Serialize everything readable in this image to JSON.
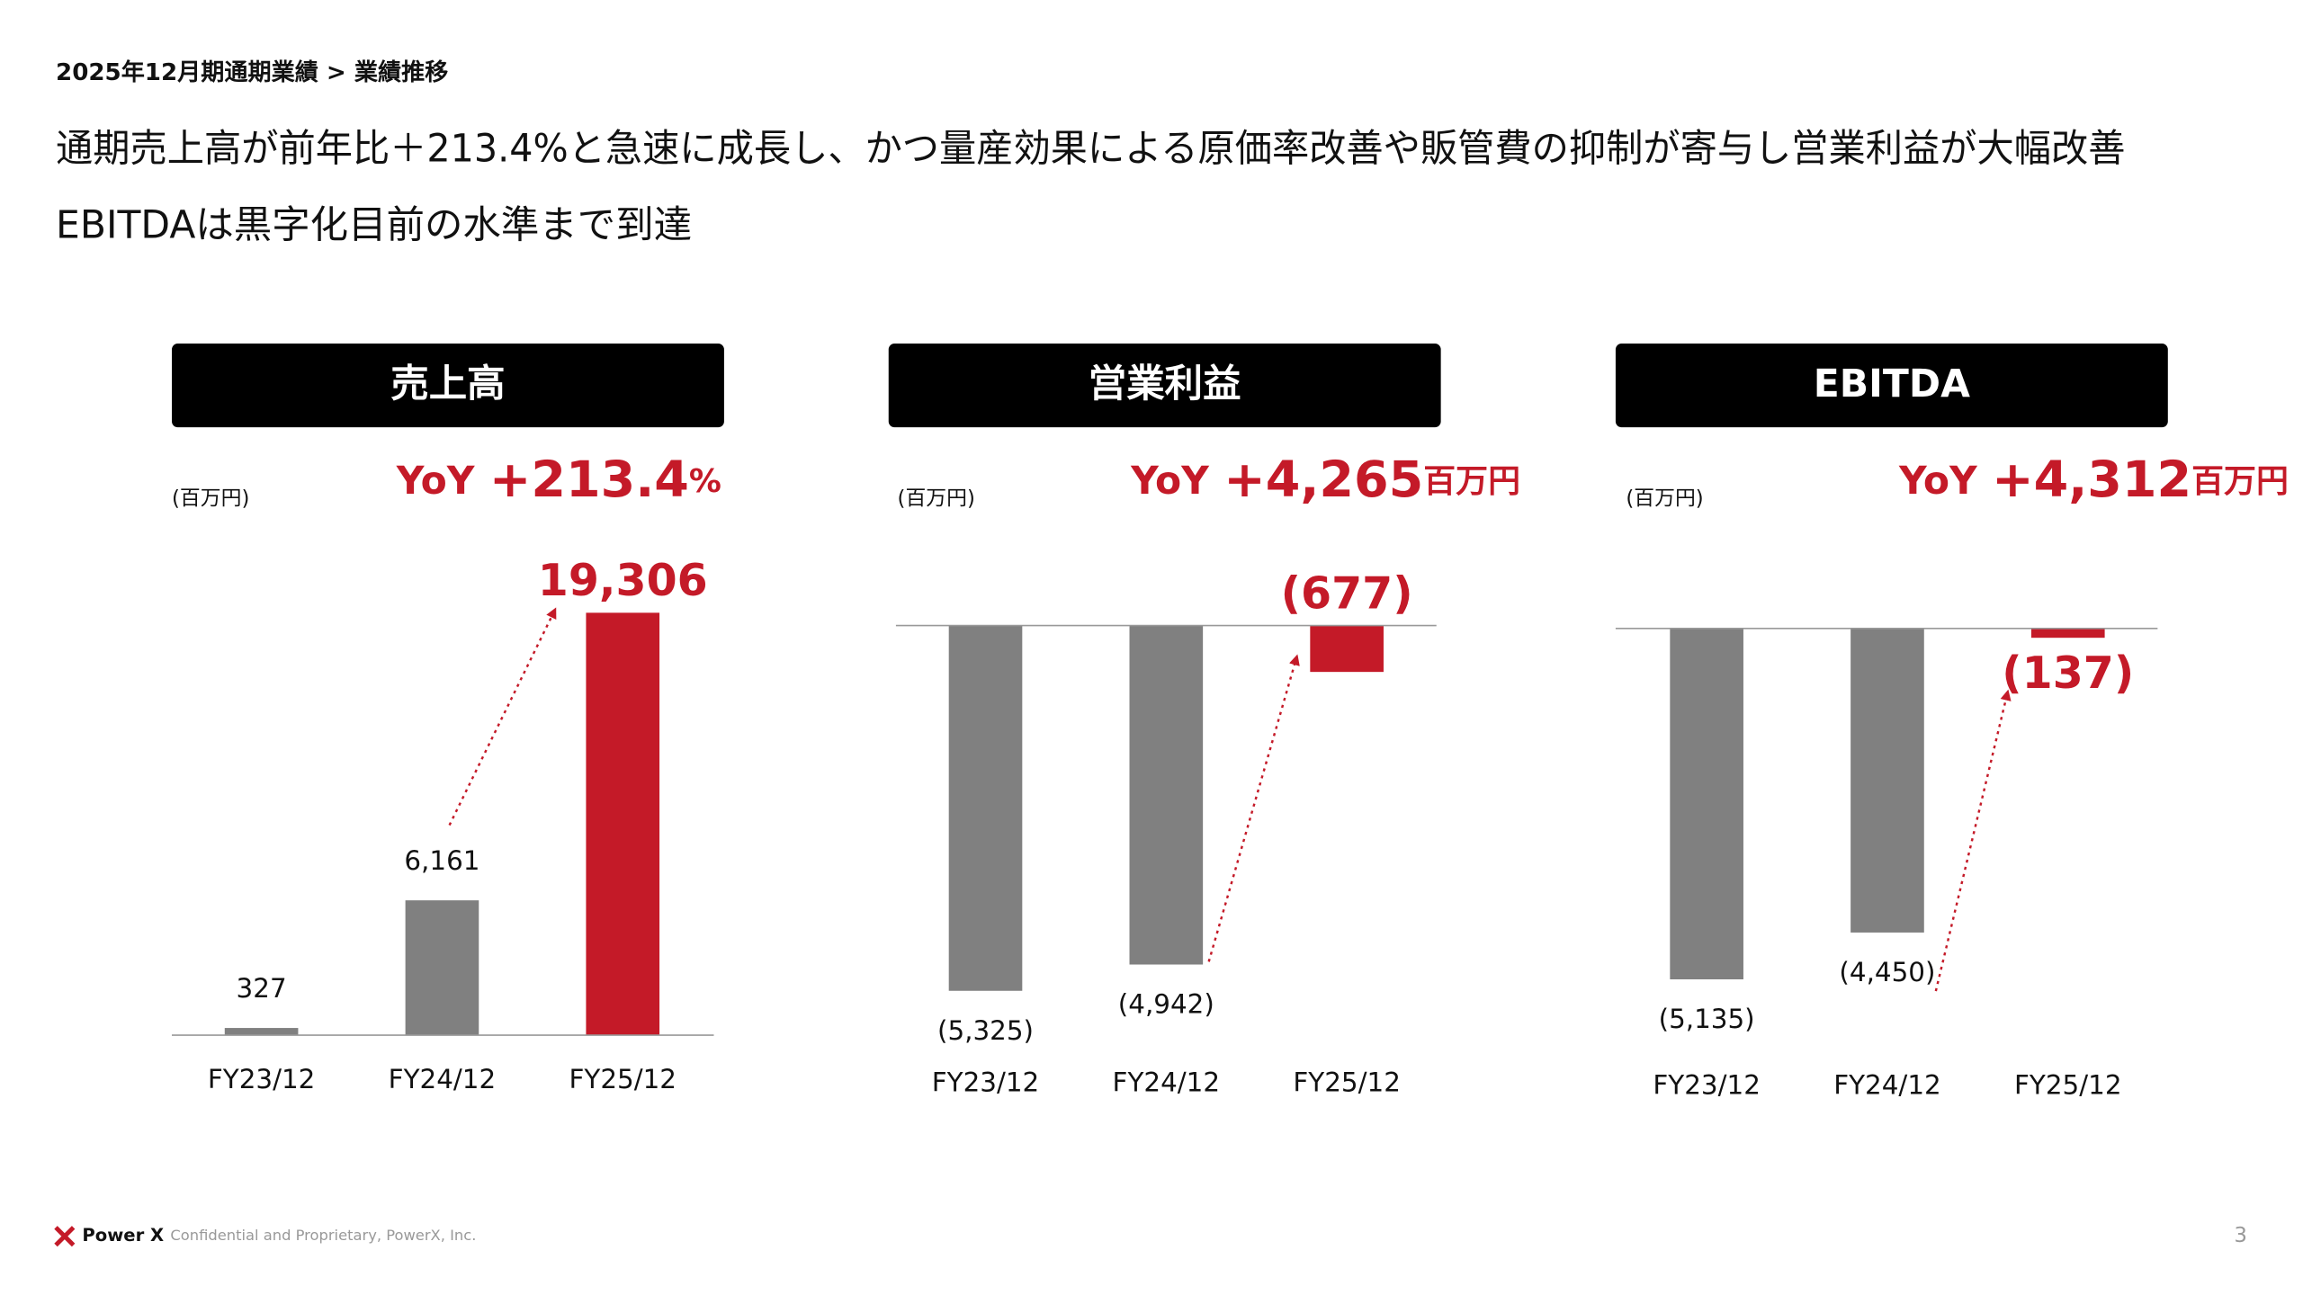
{
  "breadcrumb": "2025年12月期通期業績 > 業績推移",
  "headline": [
    "通期売上高が前年比＋213.4%と急速に成長し、かつ量産効果による原価率改善や販管費の抑制が寄与し営業利益が大幅改善",
    "EBITDAは黒字化目前の水準まで到達"
  ],
  "chart_data": [
    {
      "type": "bar",
      "title": "売上高",
      "unit_label": "(百万円)",
      "yoy": {
        "prefix": "YoY",
        "value": "+213.4",
        "unit": "%"
      },
      "categories": [
        "FY23/12",
        "FY24/12",
        "FY25/12"
      ],
      "values": [
        327,
        6161,
        19306
      ],
      "value_labels": [
        "327",
        "6,161",
        "19,306"
      ],
      "colors": [
        "#808080",
        "#808080",
        "#c41a28"
      ],
      "ylim": [
        0,
        20000
      ]
    },
    {
      "type": "bar",
      "title": "営業利益",
      "unit_label": "(百万円)",
      "yoy": {
        "prefix": "YoY",
        "value": "+4,265",
        "unit": "百万円"
      },
      "categories": [
        "FY23/12",
        "FY24/12",
        "FY25/12"
      ],
      "values": [
        -5325,
        -4942,
        -677
      ],
      "value_labels": [
        "(5,325)",
        "(4,942)",
        "(677)"
      ],
      "colors": [
        "#808080",
        "#808080",
        "#c41a28"
      ],
      "ylim": [
        -5500,
        0
      ]
    },
    {
      "type": "bar",
      "title": "EBITDA",
      "unit_label": "(百万円)",
      "yoy": {
        "prefix": "YoY",
        "value": "+4,312",
        "unit": "百万円"
      },
      "categories": [
        "FY23/12",
        "FY24/12",
        "FY25/12"
      ],
      "values": [
        -5135,
        -4450,
        -137
      ],
      "value_labels": [
        "(5,135)",
        "(4,450)",
        "(137)"
      ],
      "colors": [
        "#808080",
        "#808080",
        "#c41a28"
      ],
      "ylim": [
        -5500,
        0
      ]
    }
  ],
  "footer": {
    "brand": "Power X",
    "confidential": "Confidential and Proprietary, PowerX, Inc.",
    "page": "3"
  }
}
